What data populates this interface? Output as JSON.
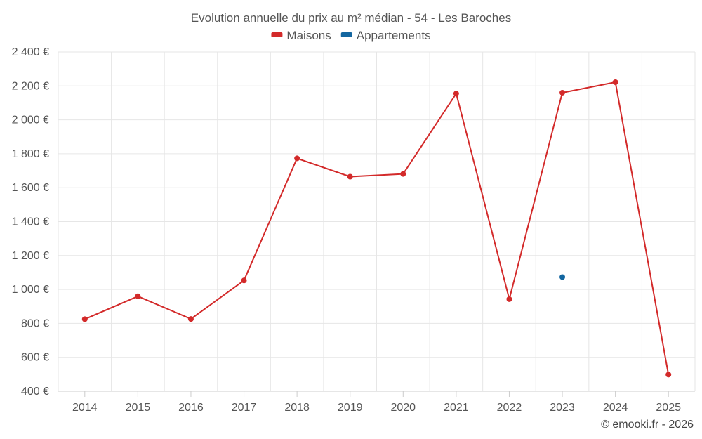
{
  "chart_data": {
    "type": "line",
    "title": "Evolution annuelle du prix au m² médian - 54 - Les Baroches",
    "categories": [
      "2014",
      "2015",
      "2016",
      "2017",
      "2018",
      "2019",
      "2020",
      "2021",
      "2022",
      "2023",
      "2024",
      "2025"
    ],
    "series": [
      {
        "name": "Maisons",
        "color": "#d32a2a",
        "values": [
          825,
          960,
          826,
          1053,
          1773,
          1665,
          1681,
          2155,
          943,
          2160,
          2222,
          498
        ]
      },
      {
        "name": "Appartements",
        "color": "#1366a0",
        "values": [
          null,
          null,
          null,
          null,
          null,
          null,
          null,
          null,
          null,
          1073,
          null,
          null
        ]
      }
    ],
    "ylim": [
      400,
      2400
    ],
    "yticks": [
      400,
      600,
      800,
      1000,
      1200,
      1400,
      1600,
      1800,
      2000,
      2200,
      2400
    ],
    "ytick_labels": [
      "400 €",
      "600 €",
      "800 €",
      "1 000 €",
      "1 200 €",
      "1 400 €",
      "1 600 €",
      "1 800 €",
      "2 000 €",
      "2 200 €",
      "2 400 €"
    ],
    "xlabel": "",
    "ylabel": "",
    "grid": true,
    "legend_position": "top-center"
  },
  "credit": "© emooki.fr - 2026"
}
